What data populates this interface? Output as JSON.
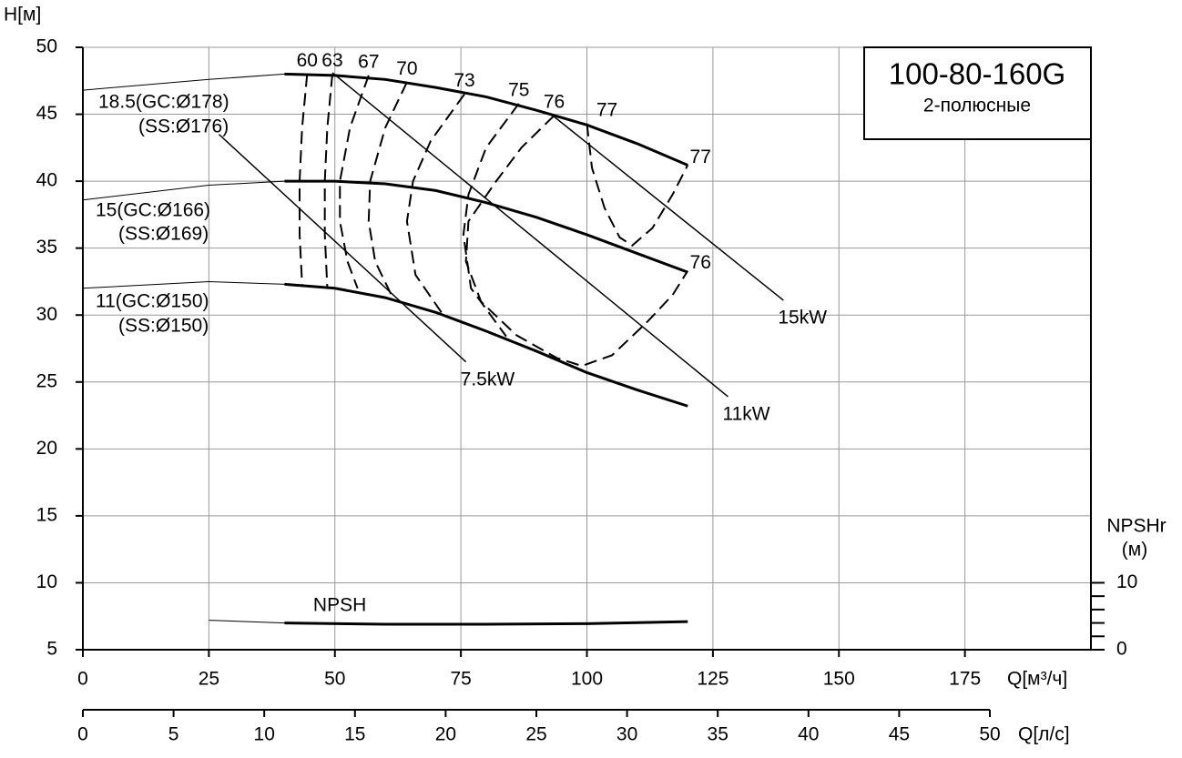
{
  "chart_data": {
    "type": "pump-curve",
    "title": "100-80-160G",
    "subtitle": "2-полюсные",
    "y_label": "H[м]",
    "x_label": "Q[м³/ч]",
    "x2_label": "Q[л/с]",
    "y2_label": [
      "NPSHr",
      "(м)"
    ],
    "xlim": [
      0,
      200
    ],
    "xticks": [
      0,
      25,
      50,
      75,
      100,
      125,
      150,
      175
    ],
    "x2lim": [
      0,
      50
    ],
    "x2ticks": [
      0,
      5,
      10,
      15,
      20,
      25,
      30,
      35,
      40,
      45,
      50
    ],
    "ylim": [
      5,
      50
    ],
    "yticks": [
      5,
      10,
      15,
      20,
      25,
      30,
      35,
      40,
      45,
      50
    ],
    "y2lim": [
      0,
      90
    ],
    "y2ticks": [
      0,
      10
    ],
    "y2minor": [
      2,
      4,
      6,
      8
    ],
    "grid": true,
    "color": "#000000",
    "operating_range": [
      40,
      120
    ],
    "impellers": [
      {
        "label": [
          "18.5(GC:Ø178)",
          "(SS:Ø176)"
        ],
        "x": [
          0,
          25,
          40,
          50,
          60,
          70,
          80,
          90,
          100,
          110,
          120
        ],
        "values": [
          46.8,
          47.6,
          48,
          47.9,
          47.6,
          47,
          46.3,
          45.3,
          44.2,
          42.8,
          41.2
        ]
      },
      {
        "label": [
          "15(GC:Ø166)",
          "(SS:Ø169)"
        ],
        "x": [
          0,
          25,
          40,
          50,
          60,
          70,
          80,
          90,
          100,
          110,
          120
        ],
        "values": [
          38.6,
          39.7,
          40,
          40,
          39.8,
          39.3,
          38.4,
          37.3,
          36,
          34.6,
          33.2
        ]
      },
      {
        "label": [
          "11(GC:Ø150)",
          "(SS:Ø150)"
        ],
        "x": [
          0,
          25,
          40,
          50,
          60,
          70,
          80,
          90,
          100,
          110,
          120
        ],
        "values": [
          32,
          32.5,
          32.3,
          32,
          31.3,
          30.2,
          28.8,
          27.3,
          25.7,
          24.4,
          23.2
        ]
      }
    ],
    "efficiency": [
      {
        "label": 60,
        "x": [
          44.5,
          43.5,
          43,
          43,
          43.5
        ],
        "values": [
          48,
          44,
          40,
          36,
          32.3
        ]
      },
      {
        "label": 63,
        "x": [
          49.5,
          48.5,
          48,
          48,
          48.5
        ],
        "values": [
          48,
          44,
          40,
          36,
          32
        ]
      },
      {
        "label": 67,
        "x": [
          56.7,
          53,
          51,
          51,
          52.5,
          54.5
        ],
        "values": [
          47.9,
          44,
          40,
          37,
          34,
          32
        ]
      },
      {
        "label": 70,
        "x": [
          64.3,
          60,
          57,
          56.7,
          58,
          61.6
        ],
        "values": [
          47.4,
          44,
          40,
          37,
          34,
          31.2
        ]
      },
      {
        "label": 73,
        "x": [
          75.7,
          69,
          65.5,
          64.3,
          66,
          71.5
        ],
        "values": [
          46.5,
          43,
          40,
          37,
          33,
          30
        ]
      },
      {
        "label": 75,
        "x": [
          86.5,
          80,
          76.5,
          75.5,
          77,
          84
        ],
        "values": [
          45.8,
          42.5,
          39,
          36,
          32,
          28.4
        ]
      },
      {
        "label": 76,
        "end_label": 76,
        "x": [
          93.5,
          87,
          82,
          76.5,
          76,
          79,
          86,
          94,
          99,
          105,
          112,
          117,
          120
        ],
        "values": [
          44.9,
          42.5,
          40,
          37,
          34,
          31,
          28.5,
          26.8,
          26.2,
          27,
          29.5,
          31.5,
          33.3
        ]
      },
      {
        "label": 77,
        "end_label": 77,
        "x": [
          100,
          101,
          103.5,
          106.5,
          109,
          113,
          117,
          120
        ],
        "values": [
          44.3,
          41,
          38,
          35.8,
          35.2,
          36.5,
          39,
          41.2
        ]
      }
    ],
    "power": [
      {
        "label": "7.5kW",
        "x": [
          27,
          76
        ],
        "values": [
          43.5,
          26.5
        ]
      },
      {
        "label": "11kW",
        "x": [
          49.5,
          128
        ],
        "values": [
          48.1,
          23.9
        ]
      },
      {
        "label": "15kW",
        "x": [
          92.9,
          139
        ],
        "values": [
          45,
          31.1
        ]
      }
    ],
    "npsh": {
      "label": "NPSH",
      "axis": "y2",
      "x": [
        25,
        40,
        60,
        80,
        100,
        120
      ],
      "values": [
        4.4,
        4,
        3.8,
        3.8,
        3.9,
        4.2
      ]
    }
  }
}
